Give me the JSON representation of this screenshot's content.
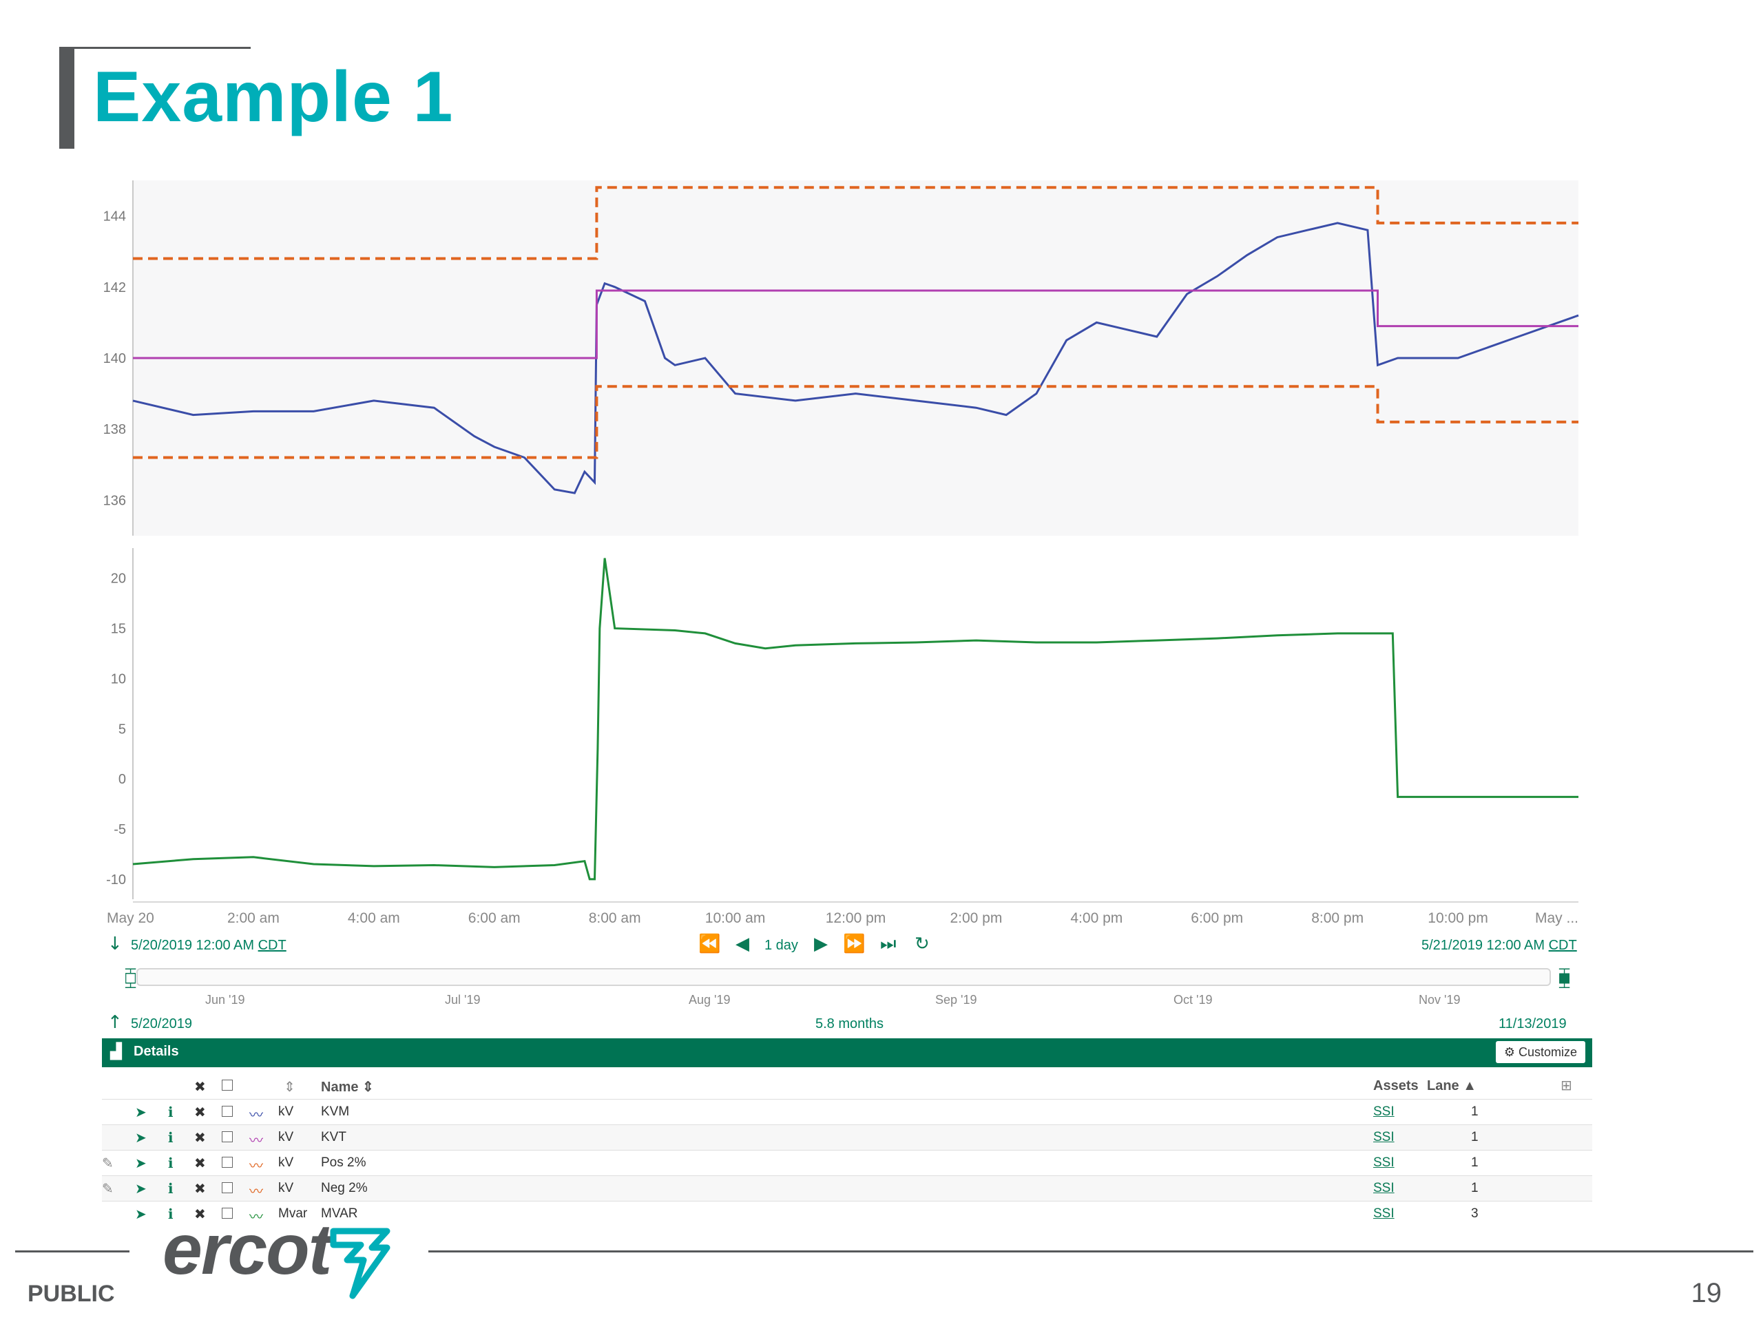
{
  "slide": {
    "title": "Example 1",
    "footer_label": "PUBLIC",
    "page_number": "19",
    "logo_text": "ercot"
  },
  "chart_data": [
    {
      "type": "line",
      "title": "",
      "xlabel": "",
      "ylabel": "",
      "ylim": [
        135,
        145
      ],
      "yticks": [
        "136",
        "138",
        "140",
        "142",
        "144"
      ],
      "grid": false,
      "series": [
        {
          "name": "KVM",
          "color": "#3a4da8",
          "style": "solid",
          "x": [
            "0:00",
            "1:00",
            "2:00",
            "3:00",
            "4:00",
            "5:00",
            "5:40",
            "6:00",
            "6:30",
            "7:00",
            "7:20",
            "7:30",
            "7:40",
            "7:42",
            "7:50",
            "8:00",
            "8:30",
            "8:50",
            "9:00",
            "9:30",
            "10:00",
            "11:00",
            "12:00",
            "13:00",
            "14:00",
            "14:30",
            "15:00",
            "15:30",
            "16:00",
            "16:30",
            "17:00",
            "17:30",
            "18:00",
            "18:30",
            "19:00",
            "19:30",
            "20:00",
            "20:30",
            "20:40",
            "21:00",
            "22:00",
            "23:00",
            "24:00"
          ],
          "y": [
            138.8,
            138.4,
            138.5,
            138.5,
            138.8,
            138.6,
            137.8,
            137.5,
            137.2,
            136.3,
            136.2,
            136.8,
            136.5,
            141.5,
            142.1,
            142,
            141.6,
            140,
            139.8,
            140,
            139,
            138.8,
            139,
            138.8,
            138.6,
            138.4,
            139,
            140.5,
            141,
            140.8,
            140.6,
            141.8,
            142.3,
            142.9,
            143.4,
            143.6,
            143.8,
            143.6,
            139.8,
            140,
            140,
            140.6,
            141.2
          ]
        },
        {
          "name": "KVT",
          "color": "#b03fb0",
          "style": "solid",
          "x": [
            "0:00",
            "7:42",
            "7:42",
            "20:40",
            "20:40",
            "24:00"
          ],
          "y": [
            140,
            140,
            141.9,
            141.9,
            140.9,
            140.9
          ]
        },
        {
          "name": "Pos 2%",
          "color": "#e06520",
          "style": "dashed",
          "x": [
            "0:00",
            "7:42",
            "7:42",
            "20:40",
            "20:40",
            "24:00"
          ],
          "y": [
            142.8,
            142.8,
            144.8,
            144.8,
            143.8,
            143.8
          ]
        },
        {
          "name": "Neg 2%",
          "color": "#e06520",
          "style": "dashed",
          "x": [
            "0:00",
            "7:42",
            "7:42",
            "20:40",
            "20:40",
            "24:00"
          ],
          "y": [
            137.2,
            137.2,
            139.2,
            139.2,
            138.2,
            138.2
          ]
        }
      ]
    },
    {
      "type": "line",
      "title": "",
      "xlabel": "",
      "ylabel": "",
      "ylim": [
        -12,
        23
      ],
      "yticks": [
        "-10",
        "-5",
        "0",
        "5",
        "10",
        "15",
        "20"
      ],
      "grid": false,
      "series": [
        {
          "name": "MVAR",
          "color": "#1f8f3a",
          "style": "solid",
          "x": [
            "0:00",
            "1:00",
            "2:00",
            "3:00",
            "4:00",
            "5:00",
            "6:00",
            "7:00",
            "7:30",
            "7:35",
            "7:40",
            "7:43",
            "7:45",
            "7:50",
            "8:00",
            "9:00",
            "9:30",
            "10:00",
            "10:30",
            "11:00",
            "12:00",
            "13:00",
            "14:00",
            "15:00",
            "16:00",
            "17:00",
            "18:00",
            "19:00",
            "20:00",
            "20:50",
            "20:55",
            "21:00",
            "22:00",
            "23:00",
            "24:00"
          ],
          "y": [
            -8.5,
            -8,
            -7.8,
            -8.5,
            -8.7,
            -8.6,
            -8.8,
            -8.6,
            -8.2,
            -10,
            -10,
            3,
            15,
            22,
            15,
            14.8,
            14.5,
            13.5,
            13,
            13.3,
            13.5,
            13.6,
            13.8,
            13.6,
            13.6,
            13.8,
            14,
            14.3,
            14.5,
            14.5,
            14.5,
            -1.8,
            -1.8,
            -1.8,
            -1.8
          ]
        }
      ]
    }
  ],
  "x_axis": {
    "ticks": [
      "May 20",
      "2:00 am",
      "4:00 am",
      "6:00 am",
      "8:00 am",
      "10:00 am",
      "12:00 pm",
      "2:00 pm",
      "4:00 pm",
      "6:00 pm",
      "8:00 pm",
      "10:00 pm",
      "May ..."
    ]
  },
  "navigator": {
    "start_datetime": "5/20/2019 12:00 AM",
    "end_datetime": "5/21/2019 12:00 AM",
    "timezone": "CDT",
    "period": "1 day",
    "months": [
      "Jun '19",
      "Jul '19",
      "Aug '19",
      "Sep '19",
      "Oct '19",
      "Nov '19"
    ],
    "range_start": "5/20/2019",
    "range_span": "5.8 months",
    "range_end": "11/13/2019"
  },
  "details": {
    "title": "Details",
    "customize_label": "Customize",
    "columns": {
      "name": "Name",
      "assets": "Assets",
      "lane": "Lane"
    },
    "rows": [
      {
        "unit": "kV",
        "name": "KVM",
        "asset": "SSI",
        "lane": "1",
        "icon_color": "#3a4da8",
        "editable": false
      },
      {
        "unit": "kV",
        "name": "KVT",
        "asset": "SSI",
        "lane": "1",
        "icon_color": "#b03fb0",
        "editable": false
      },
      {
        "unit": "kV",
        "name": "Pos 2%",
        "asset": "SSI",
        "lane": "1",
        "icon_color": "#e06520",
        "editable": true
      },
      {
        "unit": "kV",
        "name": "Neg 2%",
        "asset": "SSI",
        "lane": "1",
        "icon_color": "#e06520",
        "editable": true
      },
      {
        "unit": "Mvar",
        "name": "MVAR",
        "asset": "SSI",
        "lane": "3",
        "icon_color": "#1f8f3a",
        "editable": false
      }
    ]
  }
}
